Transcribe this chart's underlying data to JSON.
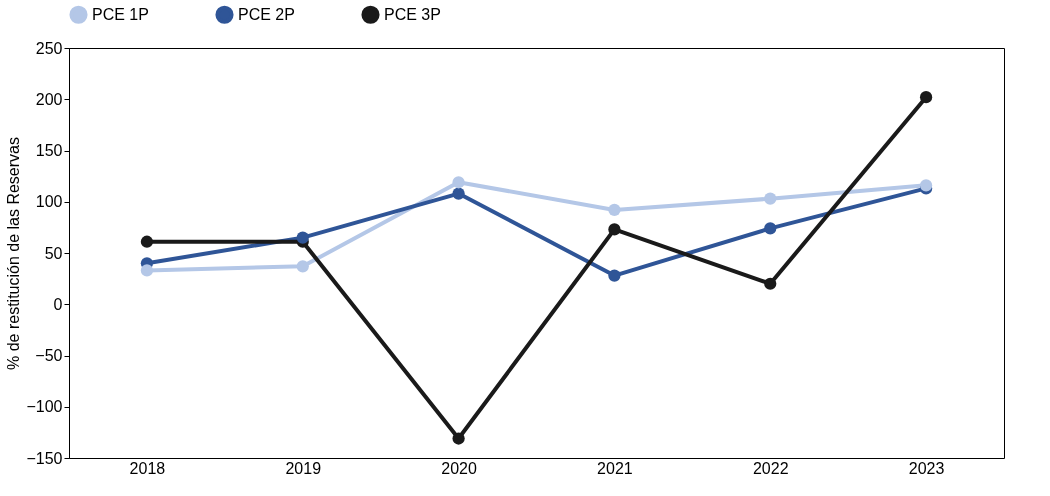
{
  "chart_data": {
    "type": "line",
    "ylabel": "% de restitución de las Reservas",
    "categories": [
      "2018",
      "2019",
      "2020",
      "2021",
      "2022",
      "2023"
    ],
    "ylim": [
      -150,
      250
    ],
    "yticks": [
      -150,
      -100,
      -50,
      0,
      50,
      100,
      150,
      200,
      250
    ],
    "legend": "top",
    "marker": "circle",
    "line_style": "solid",
    "series": [
      {
        "name": "PCE 1P",
        "color": "#b4c7e7",
        "values": [
          33,
          37,
          119,
          92,
          103,
          116
        ]
      },
      {
        "name": "PCE 2P",
        "color": "#2f5597",
        "values": [
          40,
          65,
          108,
          28,
          74,
          113
        ]
      },
      {
        "name": "PCE 3P",
        "color": "#1a1a1a",
        "values": [
          61,
          61,
          -131,
          73,
          20,
          202
        ]
      }
    ]
  }
}
